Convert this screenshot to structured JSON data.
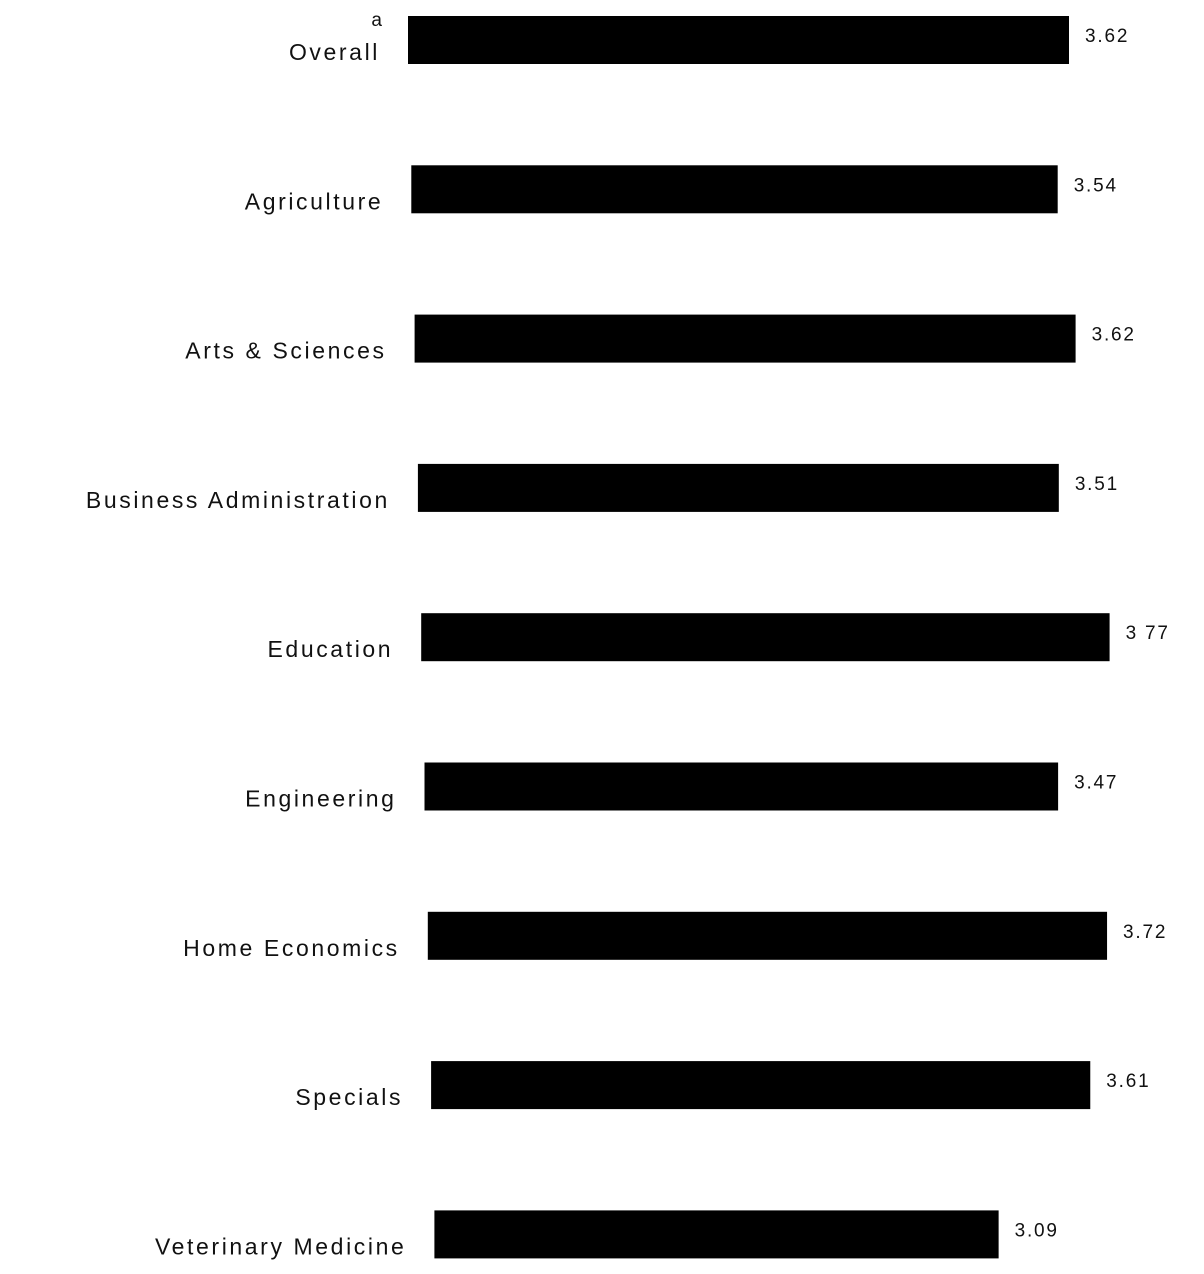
{
  "chart_data": {
    "type": "bar",
    "orientation": "horizontal",
    "categories": [
      "Overall",
      "Agriculture",
      "Arts & Sciences",
      "Business Administration",
      "Education",
      "Engineering",
      "Home Economics",
      "Specials",
      "Veterinary Medicine"
    ],
    "values": [
      3.62,
      3.54,
      3.62,
      3.51,
      3.77,
      3.47,
      3.72,
      3.61,
      3.09
    ],
    "value_labels": [
      "3.62",
      "3.54",
      "3.62",
      "3.51",
      "3 77",
      "3.47",
      "3.72",
      "3.61",
      "3.09"
    ],
    "annotations": [
      {
        "category": "Overall",
        "text": "a"
      }
    ],
    "xlim": [
      0,
      3.77
    ],
    "grid": false,
    "bar_color": "#000000"
  }
}
